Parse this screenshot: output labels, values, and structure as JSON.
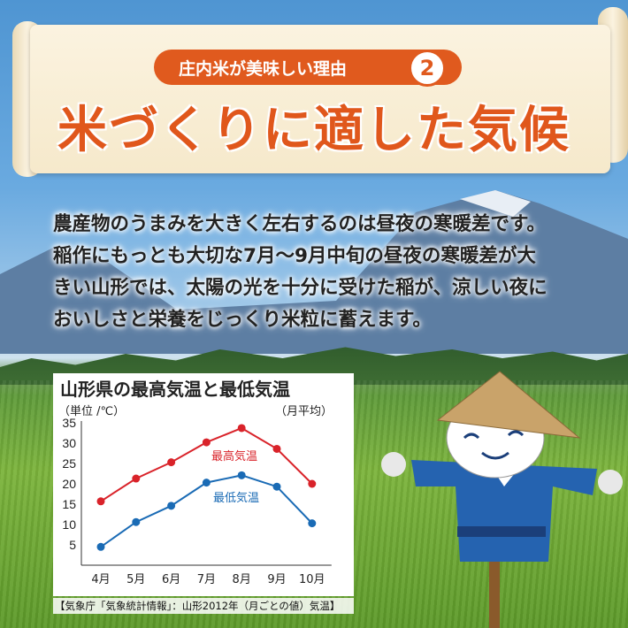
{
  "header": {
    "badge": "庄内米が美味しい理由",
    "badge_number": "2",
    "title": "米づくりに適した気候"
  },
  "body_text": [
    "農産物のうまみを大きく左右するのは昼夜の寒暖差です。",
    "稲作にもっとも大切な7月〜9月中旬の昼夜の寒暖差が大",
    "きい山形では、太陽の光を十分に受けた稲が、涼しい夜に",
    "おいしさと栄養をじっくり米粒に蓄えます。"
  ],
  "colors": {
    "accent": "#e05a1e",
    "high": "#d9232a",
    "low": "#1a6bb5"
  },
  "chart_data": {
    "type": "line",
    "title": "山形県の最高気温と最低気温",
    "ylabel": "（単位 /℃）",
    "note": "（月平均）",
    "categories": [
      "4月",
      "5月",
      "6月",
      "7月",
      "8月",
      "9月",
      "10月"
    ],
    "yticks": [
      5,
      10,
      15,
      20,
      25,
      30,
      35
    ],
    "ylim": [
      0,
      35
    ],
    "grid": false,
    "series": [
      {
        "name": "最高気温",
        "color": "#d9232a",
        "values": [
          15.7,
          21.3,
          25.3,
          30.2,
          33.7,
          28.6,
          20.0
        ]
      },
      {
        "name": "最低気温",
        "color": "#1a6bb5",
        "values": [
          4.5,
          10.6,
          14.6,
          20.3,
          22.1,
          19.3,
          10.3
        ]
      }
    ],
    "source": "【気象庁「気象統計情報」：山形2012年（月ごとの値）気温】"
  }
}
